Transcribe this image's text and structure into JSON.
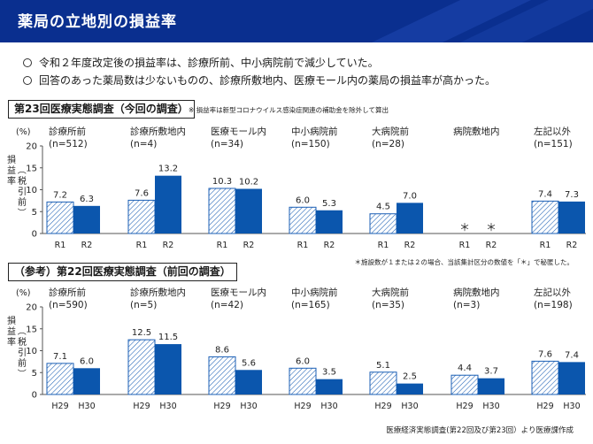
{
  "header": {
    "title": "薬局の立地別の損益率"
  },
  "bullets": [
    "令和２年度改定後の損益率は、診療所前、中小病院前で減少していた。",
    "回答のあった薬局数は少ないものの、診療所敷地内、医療モール内の薬局の損益率が高かった。"
  ],
  "colors": {
    "banner": "#0a2f8f",
    "banner_stripe": "#2a56c6",
    "series_new": "#0b56ad",
    "series_old_stroke": "#1b5fb5",
    "axis": "#555555"
  },
  "notes": {
    "covid": "※ 損益率は新型コロナウイルス感染症関連の補助金を除外して算出",
    "asterisk": "＊施設数が１または２の場合、当該集計区分の数値を「＊」で秘匿した。",
    "source": "医療経済実態調査(第22回及び第23回）より医療課作成"
  },
  "chart_data": [
    {
      "type": "bar",
      "title": "第23回医療実態調査（今回の調査）",
      "ylabel": "損益率（税引前）",
      "yunit": "(%)",
      "ylim": [
        0,
        20
      ],
      "yticks": [
        0,
        5,
        10,
        15,
        20
      ],
      "grid": false,
      "categories": [
        "診療所前",
        "診療所敷地内",
        "医療モール内",
        "中小病院前",
        "大病院前",
        "病院敷地内",
        "左記以外"
      ],
      "counts": [
        "(n=512)",
        "(n=4)",
        "(n=34)",
        "(n=150)",
        "(n=28)",
        "",
        "(n=151)"
      ],
      "series": [
        {
          "name": "R1",
          "values": [
            7.2,
            7.6,
            10.3,
            6.0,
            4.5,
            null,
            7.4
          ],
          "labels": [
            "7.2",
            "7.6",
            "10.3",
            "6.0",
            "4.5",
            "＊",
            "7.4"
          ]
        },
        {
          "name": "R2",
          "values": [
            6.3,
            13.2,
            10.2,
            5.3,
            7.0,
            null,
            7.3
          ],
          "labels": [
            "6.3",
            "13.2",
            "10.2",
            "5.3",
            "7.0",
            "＊",
            "7.3"
          ]
        }
      ]
    },
    {
      "type": "bar",
      "title": "（参考）第22回医療実態調査（前回の調査）",
      "ylabel": "損益率（税引前）",
      "yunit": "(%)",
      "ylim": [
        0,
        20
      ],
      "yticks": [
        0,
        5,
        10,
        15,
        20
      ],
      "grid": false,
      "categories": [
        "診療所前",
        "診療所敷地内",
        "医療モール内",
        "中小病院前",
        "大病院前",
        "病院敷地内",
        "左記以外"
      ],
      "counts": [
        "(n=590)",
        "(n=5)",
        "(n=42)",
        "(n=165)",
        "(n=35)",
        "(n=3)",
        "(n=198)"
      ],
      "series": [
        {
          "name": "H29",
          "values": [
            7.1,
            12.5,
            8.6,
            6.0,
            5.1,
            4.4,
            7.6
          ],
          "labels": [
            "7.1",
            "12.5",
            "8.6",
            "6.0",
            "5.1",
            "4.4",
            "7.6"
          ]
        },
        {
          "name": "H30",
          "values": [
            6.0,
            11.5,
            5.6,
            3.5,
            2.5,
            3.7,
            7.4
          ],
          "labels": [
            "6.0",
            "11.5",
            "5.6",
            "3.5",
            "2.5",
            "3.7",
            "7.4"
          ]
        }
      ]
    }
  ]
}
